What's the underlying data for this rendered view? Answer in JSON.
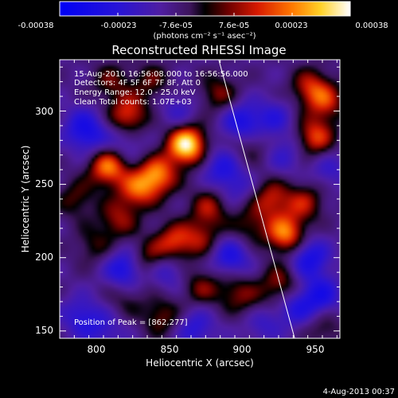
{
  "chart_data": {
    "type": "heatmap",
    "title": "Reconstructed RHESSI Image",
    "xlabel": "Heliocentric X (arcsec)",
    "ylabel": "Heliocentric Y (arcsec)",
    "xlim": [
      775,
      967
    ],
    "ylim": [
      145,
      335
    ],
    "xticks": [
      800,
      850,
      900,
      950
    ],
    "yticks": [
      150,
      200,
      250,
      300
    ],
    "colorbar": {
      "label": "(photons cm⁻² s⁻¹ asec⁻²)",
      "range": [
        -0.00038,
        0.00038
      ],
      "ticks": [
        "-0.00038",
        "-0.00023",
        "-7.6e-05",
        "7.6e-05",
        "0.00023",
        "0.00038"
      ]
    },
    "annotations": [
      "15-Aug-2010 16:56:08.000 to 16:56:56.000",
      "Detectors: 4F 5F 6F 7F 8F, Att 0",
      "Energy Range: 12.0 - 25.0 keV",
      "Clean     Total counts: 1.07E+03"
    ],
    "peak_label": "Position of Peak = [862,277]",
    "peak": [
      862,
      277
    ],
    "limb_line": {
      "points": [
        [
          884,
          335
        ],
        [
          936,
          145
        ]
      ]
    },
    "sources": [
      {
        "x": 862,
        "y": 277,
        "value": 0.00038
      },
      {
        "x": 842,
        "y": 256,
        "value": 0.00026
      },
      {
        "x": 808,
        "y": 262,
        "value": 0.00027
      },
      {
        "x": 828,
        "y": 246,
        "value": 0.0002
      },
      {
        "x": 822,
        "y": 297,
        "value": 0.00022
      },
      {
        "x": 878,
        "y": 235,
        "value": 0.00016
      },
      {
        "x": 853,
        "y": 210,
        "value": 0.00021
      },
      {
        "x": 872,
        "y": 214,
        "value": 0.00014
      },
      {
        "x": 835,
        "y": 198,
        "value": 0.00016
      },
      {
        "x": 815,
        "y": 226,
        "value": 0.00015
      },
      {
        "x": 798,
        "y": 208,
        "value": 0.0001
      },
      {
        "x": 920,
        "y": 240,
        "value": 0.00018
      },
      {
        "x": 943,
        "y": 238,
        "value": 0.00016
      },
      {
        "x": 930,
        "y": 216,
        "value": 0.00027
      },
      {
        "x": 905,
        "y": 222,
        "value": 0.00012
      },
      {
        "x": 950,
        "y": 282,
        "value": 0.00022
      },
      {
        "x": 958,
        "y": 306,
        "value": 0.00016
      },
      {
        "x": 947,
        "y": 316,
        "value": 0.00018
      },
      {
        "x": 884,
        "y": 312,
        "value": 0.00014
      },
      {
        "x": 810,
        "y": 320,
        "value": 0.00012
      },
      {
        "x": 838,
        "y": 320,
        "value": 0.00012
      },
      {
        "x": 872,
        "y": 180,
        "value": 0.00013
      },
      {
        "x": 895,
        "y": 178,
        "value": 0.00012
      },
      {
        "x": 845,
        "y": 160,
        "value": 0.00014
      },
      {
        "x": 926,
        "y": 182,
        "value": 0.00016
      },
      {
        "x": 908,
        "y": 165,
        "value": 0.00013
      },
      {
        "x": 956,
        "y": 152,
        "value": 0.0001
      },
      {
        "x": 786,
        "y": 240,
        "value": 0.00012
      },
      {
        "x": 905,
        "y": 277,
        "value": 0.0001
      },
      {
        "x": 820,
        "y": 173,
        "value": 9e-05
      },
      {
        "x": 790,
        "y": 290,
        "value": -0.00012
      },
      {
        "x": 796,
        "y": 282,
        "value": -0.00012
      },
      {
        "x": 820,
        "y": 278,
        "value": -0.0001
      },
      {
        "x": 885,
        "y": 262,
        "value": -0.00014
      },
      {
        "x": 900,
        "y": 292,
        "value": -0.0002
      },
      {
        "x": 922,
        "y": 295,
        "value": -0.00012
      },
      {
        "x": 930,
        "y": 270,
        "value": -0.0001
      },
      {
        "x": 856,
        "y": 300,
        "value": -0.0001
      },
      {
        "x": 820,
        "y": 192,
        "value": -0.00022
      },
      {
        "x": 848,
        "y": 192,
        "value": -0.00014
      },
      {
        "x": 892,
        "y": 200,
        "value": -0.00018
      },
      {
        "x": 912,
        "y": 158,
        "value": -0.00016
      },
      {
        "x": 946,
        "y": 200,
        "value": -0.0002
      },
      {
        "x": 954,
        "y": 174,
        "value": -0.00018
      },
      {
        "x": 937,
        "y": 166,
        "value": -0.00014
      },
      {
        "x": 868,
        "y": 152,
        "value": -0.00014
      },
      {
        "x": 790,
        "y": 160,
        "value": -0.00014
      },
      {
        "x": 806,
        "y": 150,
        "value": -0.0001
      },
      {
        "x": 960,
        "y": 260,
        "value": -0.0001
      },
      {
        "x": 895,
        "y": 248,
        "value": -0.0001
      }
    ]
  },
  "footer": {
    "date": "4-Aug-2013 00:37"
  }
}
